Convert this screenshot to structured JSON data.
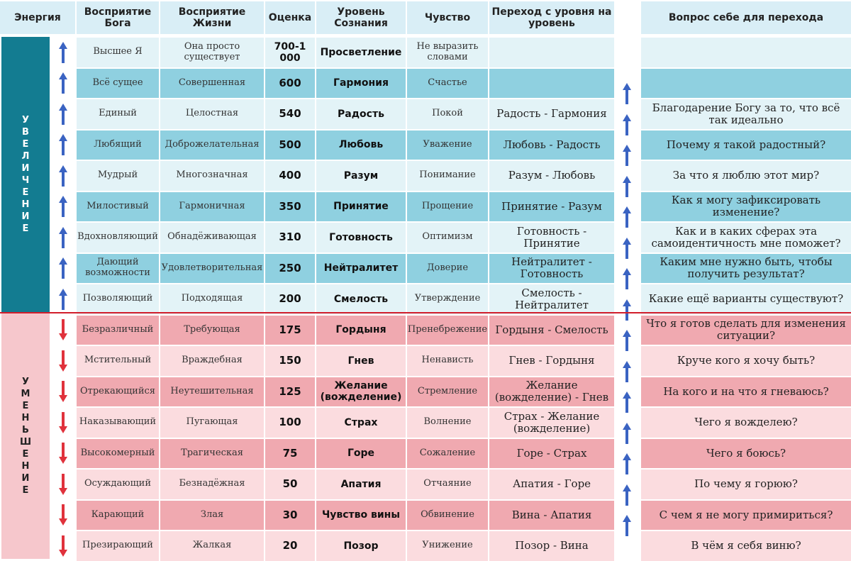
{
  "header": {
    "energy": "Энергия",
    "god": "Восприятие Бога",
    "life": "Восприятие Жизни",
    "score": "Оценка",
    "level": "Уровень Сознания",
    "feeling": "Чувство",
    "transition": "Переход с уровня на уровень",
    "question": "Вопрос себе для перехода"
  },
  "energy_labels": {
    "increase": [
      "У",
      "В",
      "Е",
      "Л",
      "И",
      "Ч",
      "Е",
      "Н",
      "И",
      "Е"
    ],
    "decrease": [
      "У",
      "М",
      "Е",
      "Н",
      "Ь",
      "Ш",
      "Е",
      "Н",
      "И",
      "Е"
    ]
  },
  "colors": {
    "up_arrow": "#3a63c2",
    "down_arrow": "#e0323c",
    "divider": "#d21e2b"
  },
  "rows": [
    {
      "group": "up",
      "god": "Высшее Я",
      "life": "Она просто существует",
      "score": "700-1000",
      "level": "Просветление",
      "feeling": "Не выразить словами",
      "transition": "",
      "question": ""
    },
    {
      "group": "up",
      "god": "Всё сущее",
      "life": "Совершенная",
      "score": "600",
      "level": "Гармония",
      "feeling": "Счастье",
      "transition": "",
      "question": ""
    },
    {
      "group": "up",
      "god": "Единый",
      "life": "Целостная",
      "score": "540",
      "level": "Радость",
      "feeling": "Покой",
      "transition": "Радость - Гармония",
      "question": "Благодарение Богу за то, что всё так идеально"
    },
    {
      "group": "up",
      "god": "Любящий",
      "life": "Доброжелательная",
      "score": "500",
      "level": "Любовь",
      "feeling": "Уважение",
      "transition": "Любовь - Радость",
      "question": "Почему я такой радостный?"
    },
    {
      "group": "up",
      "god": "Мудрый",
      "life": "Многозначная",
      "score": "400",
      "level": "Разум",
      "feeling": "Понимание",
      "transition": "Разум - Любовь",
      "question": "За что я люблю этот мир?"
    },
    {
      "group": "up",
      "god": "Милостивый",
      "life": "Гармоничная",
      "score": "350",
      "level": "Принятие",
      "feeling": "Прощение",
      "transition": "Принятие - Разум",
      "question": "Как я могу зафиксировать изменение?"
    },
    {
      "group": "up",
      "god": "Вдохновляющий",
      "life": "Обнадёживающая",
      "score": "310",
      "level": "Готовность",
      "feeling": "Оптимизм",
      "transition": "Готовность - Принятие",
      "question": "Как и в каких сферах эта самоидентичность мне поможет?"
    },
    {
      "group": "up",
      "god": "Дающий возможности",
      "life": "Удовлетворительная",
      "score": "250",
      "level": "Нейтралитет",
      "feeling": "Доверие",
      "transition": "Нейтралитет - Готовность",
      "question": "Каким мне нужно быть, чтобы получить результат?"
    },
    {
      "group": "up",
      "god": "Позволяющий",
      "life": "Подходящая",
      "score": "200",
      "level": "Смелость",
      "feeling": "Утверждение",
      "transition": "Смелость - Нейтралитет",
      "question": "Какие ещё варианты существуют?"
    },
    {
      "group": "down",
      "god": "Безразличный",
      "life": "Требующая",
      "score": "175",
      "level": "Гордыня",
      "feeling": "Пренебрежение",
      "transition": "Гордыня - Смелость",
      "question": "Что я готов сделать для изменения ситуации?"
    },
    {
      "group": "down",
      "god": "Мстительный",
      "life": "Враждебная",
      "score": "150",
      "level": "Гнев",
      "feeling": "Ненависть",
      "transition": "Гнев - Гордыня",
      "question": "Круче кого я хочу быть?"
    },
    {
      "group": "down",
      "god": "Отрекающийся",
      "life": "Неутешительная",
      "score": "125",
      "level": "Желание (вожделение)",
      "feeling": "Стремление",
      "transition": "Желание (вожделение) - Гнев",
      "question": "На кого и на что я гневаюсь?"
    },
    {
      "group": "down",
      "god": "Наказывающий",
      "life": "Пугающая",
      "score": "100",
      "level": "Страх",
      "feeling": "Волнение",
      "transition": "Страх - Желание (вожделение)",
      "question": "Чего я вожделею?"
    },
    {
      "group": "down",
      "god": "Высокомерный",
      "life": "Трагическая",
      "score": "75",
      "level": "Горе",
      "feeling": "Сожаление",
      "transition": "Горе - Страх",
      "question": "Чего я боюсь?"
    },
    {
      "group": "down",
      "god": "Осуждающий",
      "life": "Безнадёжная",
      "score": "50",
      "level": "Апатия",
      "feeling": "Отчаяние",
      "transition": "Апатия - Горе",
      "question": "По чему я горюю?"
    },
    {
      "group": "down",
      "god": "Карающий",
      "life": "Злая",
      "score": "30",
      "level": "Чувство вины",
      "feeling": "Обвинение",
      "transition": "Вина - Апатия",
      "question": "С чем я не могу примириться?"
    },
    {
      "group": "down",
      "god": "Презирающий",
      "life": "Жалкая",
      "score": "20",
      "level": "Позор",
      "feeling": "Унижение",
      "transition": "Позор - Вина",
      "question": "В чём я себя виню?"
    }
  ]
}
